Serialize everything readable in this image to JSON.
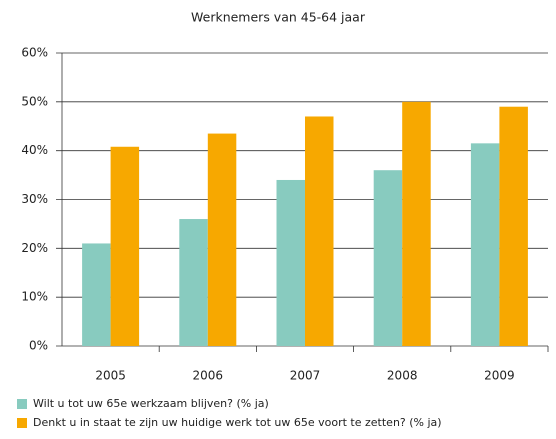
{
  "chart_data": {
    "type": "bar",
    "title": "Werknemers van 45-64 jaar",
    "categories": [
      "2005",
      "2006",
      "2007",
      "2008",
      "2009"
    ],
    "series": [
      {
        "name": "Wilt u tot uw 65e werkzaam blijven? (% ja)",
        "color": "#88cbbf",
        "values": [
          21,
          26,
          34,
          36,
          41.5
        ]
      },
      {
        "name": "Denkt u in staat te zijn uw huidige werk tot uw 65e voort te zetten? (% ja)",
        "color": "#f7a800",
        "values": [
          40.8,
          43.5,
          47,
          50,
          49
        ]
      }
    ],
    "ylim": [
      0,
      60
    ],
    "yticks": [
      {
        "value": 0,
        "label": "0%"
      },
      {
        "value": 10,
        "label": "10%"
      },
      {
        "value": 20,
        "label": "20%"
      },
      {
        "value": 30,
        "label": "30%"
      },
      {
        "value": 40,
        "label": "40%"
      },
      {
        "value": 50,
        "label": "50%"
      },
      {
        "value": 60,
        "label": "60%"
      }
    ],
    "grid": true,
    "legend": "bottom"
  }
}
